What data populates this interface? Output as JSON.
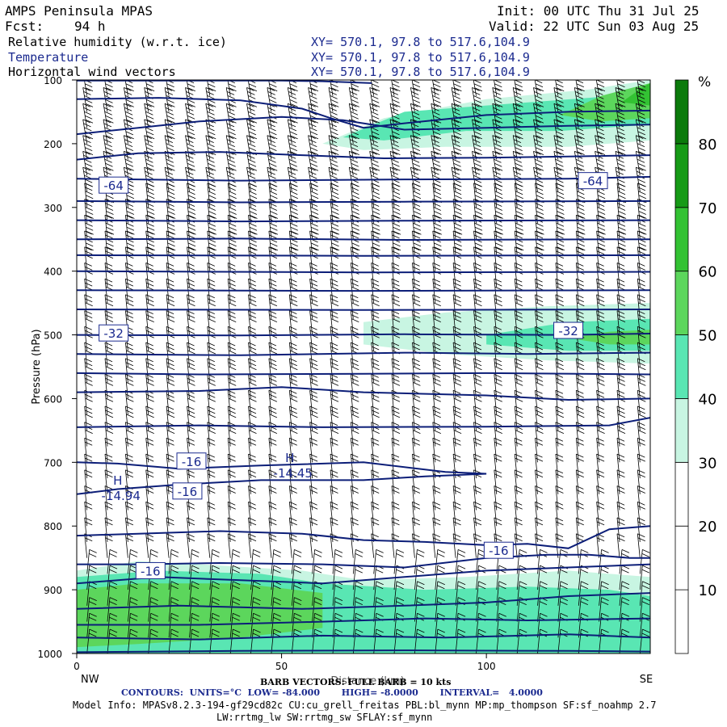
{
  "header": {
    "title": "AMPS Peninsula MPAS",
    "fcst_label": "Fcst:",
    "fcst_value": "94 h",
    "init": "Init: 00 UTC Thu 31 Jul 25",
    "valid": "Valid: 22 UTC Sun 03 Aug 25",
    "fields": [
      {
        "name": "Relative humidity (w.r.t. ice)",
        "xy": "XY= 570.1, 97.8 to 517.6,104.9"
      },
      {
        "name": "Temperature",
        "xy": "XY= 570.1, 97.8 to 517.6,104.9"
      },
      {
        "name": "Horizontal wind vectors",
        "xy": "XY= 570.1, 97.8 to 517.6,104.9"
      }
    ]
  },
  "chart_data": {
    "type": "heatmap",
    "ylabel": "Pressure (hPa)",
    "xlabel": "Distance (km)",
    "x_range": [
      0,
      140
    ],
    "x_ticks": [
      0,
      50,
      100
    ],
    "x_end_labels": {
      "left": "NW",
      "right": "SE"
    },
    "y_range": [
      1000,
      100
    ],
    "y_ticks": [
      100,
      200,
      300,
      400,
      500,
      600,
      700,
      800,
      900,
      1000
    ],
    "colorbar": {
      "unit": "%",
      "levels": [
        10,
        20,
        30,
        40,
        50,
        60,
        70,
        80
      ],
      "colors": [
        "#ffffff",
        "#ffffff",
        "#ffffff",
        "#c8f5e2",
        "#59e6b3",
        "#5cd65c",
        "#33c233",
        "#169a16",
        "#0b7a0b"
      ]
    },
    "rh_regions": [
      {
        "level": 30,
        "pts": [
          [
            0,
            1000
          ],
          [
            0,
            870
          ],
          [
            15,
            855
          ],
          [
            30,
            860
          ],
          [
            55,
            870
          ],
          [
            70,
            885
          ],
          [
            95,
            880
          ],
          [
            120,
            870
          ],
          [
            140,
            880
          ],
          [
            140,
            1000
          ]
        ]
      },
      {
        "level": 40,
        "pts": [
          [
            0,
            1000
          ],
          [
            0,
            880
          ],
          [
            20,
            870
          ],
          [
            45,
            875
          ],
          [
            60,
            890
          ],
          [
            85,
            900
          ],
          [
            110,
            895
          ],
          [
            130,
            900
          ],
          [
            140,
            910
          ],
          [
            140,
            1000
          ]
        ]
      },
      {
        "level": 50,
        "pts": [
          [
            0,
            990
          ],
          [
            0,
            900
          ],
          [
            15,
            890
          ],
          [
            40,
            890
          ],
          [
            60,
            905
          ],
          [
            60,
            960
          ],
          [
            40,
            975
          ],
          [
            15,
            985
          ]
        ]
      },
      {
        "level": 40,
        "pts": [
          [
            75,
            920
          ],
          [
            90,
            905
          ],
          [
            110,
            915
          ],
          [
            125,
            935
          ],
          [
            115,
            960
          ],
          [
            90,
            965
          ],
          [
            75,
            950
          ]
        ]
      },
      {
        "level": 30,
        "pts": [
          [
            60,
            200
          ],
          [
            75,
            160
          ],
          [
            100,
            130
          ],
          [
            125,
            115
          ],
          [
            140,
            100
          ],
          [
            140,
            195
          ],
          [
            120,
            205
          ],
          [
            90,
            205
          ],
          [
            70,
            210
          ]
        ]
      },
      {
        "level": 40,
        "pts": [
          [
            65,
            190
          ],
          [
            80,
            150
          ],
          [
            100,
            140
          ],
          [
            125,
            128
          ],
          [
            140,
            120
          ],
          [
            140,
            170
          ],
          [
            118,
            180
          ],
          [
            95,
            180
          ],
          [
            75,
            195
          ]
        ]
      },
      {
        "level": 50,
        "pts": [
          [
            118,
            155
          ],
          [
            128,
            125
          ],
          [
            140,
            105
          ],
          [
            140,
            160
          ],
          [
            128,
            165
          ]
        ]
      },
      {
        "level": 60,
        "pts": [
          [
            133,
            135
          ],
          [
            138,
            112
          ],
          [
            140,
            105
          ],
          [
            140,
            140
          ]
        ]
      },
      {
        "level": 30,
        "pts": [
          [
            70,
            480
          ],
          [
            90,
            465
          ],
          [
            115,
            455
          ],
          [
            140,
            450
          ],
          [
            140,
            545
          ],
          [
            115,
            540
          ],
          [
            90,
            530
          ],
          [
            70,
            515
          ]
        ]
      },
      {
        "level": 40,
        "pts": [
          [
            100,
            500
          ],
          [
            120,
            480
          ],
          [
            140,
            475
          ],
          [
            140,
            525
          ],
          [
            120,
            525
          ],
          [
            100,
            515
          ]
        ]
      },
      {
        "level": 50,
        "pts": [
          [
            120,
            505
          ],
          [
            130,
            495
          ],
          [
            140,
            492
          ],
          [
            140,
            515
          ],
          [
            130,
            515
          ]
        ]
      }
    ],
    "isotherms": [
      [
        [
          0,
          101
        ],
        [
          50,
          101
        ],
        [
          60,
          102
        ],
        [
          72,
          105
        ]
      ],
      [
        [
          0,
          130
        ],
        [
          20,
          128
        ],
        [
          40,
          132
        ],
        [
          55,
          145
        ],
        [
          62,
          160
        ],
        [
          70,
          175
        ],
        [
          80,
          168
        ],
        [
          100,
          155
        ],
        [
          120,
          150
        ],
        [
          140,
          148
        ]
      ],
      [
        [
          0,
          185
        ],
        [
          15,
          175
        ],
        [
          30,
          165
        ],
        [
          50,
          158
        ],
        [
          65,
          163
        ],
        [
          80,
          178
        ],
        [
          100,
          175
        ],
        [
          120,
          172
        ],
        [
          140,
          170
        ]
      ],
      [
        [
          0,
          225
        ],
        [
          15,
          215
        ],
        [
          35,
          213
        ],
        [
          55,
          218
        ],
        [
          75,
          223
        ],
        [
          100,
          222
        ],
        [
          120,
          220
        ],
        [
          140,
          218
        ]
      ],
      [
        [
          0,
          255
        ],
        [
          40,
          258
        ],
        [
          80,
          256
        ],
        [
          120,
          255
        ],
        [
          140,
          252
        ]
      ],
      [
        [
          0,
          290
        ],
        [
          40,
          292
        ],
        [
          80,
          291
        ],
        [
          140,
          290
        ]
      ],
      [
        [
          0,
          320
        ],
        [
          40,
          322
        ],
        [
          80,
          321
        ],
        [
          140,
          320
        ]
      ],
      [
        [
          0,
          350
        ],
        [
          40,
          349
        ],
        [
          80,
          351
        ],
        [
          140,
          350
        ]
      ],
      [
        [
          0,
          375
        ],
        [
          70,
          376
        ],
        [
          140,
          375
        ]
      ],
      [
        [
          0,
          400
        ],
        [
          70,
          402
        ],
        [
          140,
          401
        ]
      ],
      [
        [
          0,
          430
        ],
        [
          70,
          431
        ],
        [
          140,
          430
        ]
      ],
      [
        [
          0,
          460
        ],
        [
          70,
          461
        ],
        [
          140,
          460
        ]
      ],
      [
        [
          0,
          500
        ],
        [
          40,
          501
        ],
        [
          80,
          499
        ],
        [
          120,
          500
        ],
        [
          140,
          498
        ]
      ],
      [
        [
          0,
          530
        ],
        [
          40,
          532
        ],
        [
          80,
          528
        ],
        [
          110,
          530
        ],
        [
          140,
          528
        ]
      ],
      [
        [
          0,
          560
        ],
        [
          30,
          562
        ],
        [
          70,
          561
        ],
        [
          100,
          560
        ],
        [
          140,
          562
        ]
      ],
      [
        [
          0,
          590
        ],
        [
          30,
          588
        ],
        [
          50,
          582
        ],
        [
          70,
          590
        ],
        [
          100,
          595
        ],
        [
          120,
          602
        ],
        [
          140,
          600
        ]
      ],
      [
        [
          0,
          645
        ],
        [
          30,
          642
        ],
        [
          60,
          645
        ],
        [
          100,
          644
        ],
        [
          130,
          642
        ],
        [
          140,
          630
        ]
      ],
      [
        [
          0,
          700
        ],
        [
          10,
          702
        ],
        [
          25,
          710
        ],
        [
          45,
          705
        ],
        [
          70,
          700
        ],
        [
          90,
          715
        ],
        [
          100,
          718
        ],
        [
          85,
          722
        ],
        [
          70,
          728
        ],
        [
          45,
          728
        ],
        [
          25,
          735
        ],
        [
          10,
          742
        ],
        [
          0,
          750
        ]
      ],
      [
        [
          0,
          815
        ],
        [
          15,
          812
        ],
        [
          35,
          808
        ],
        [
          55,
          812
        ],
        [
          70,
          822
        ],
        [
          85,
          825
        ],
        [
          100,
          830
        ],
        [
          110,
          828
        ],
        [
          120,
          835
        ],
        [
          130,
          805
        ],
        [
          140,
          800
        ]
      ],
      [
        [
          0,
          860
        ],
        [
          15,
          860
        ],
        [
          35,
          858
        ],
        [
          60,
          860
        ],
        [
          80,
          865
        ],
        [
          100,
          850
        ],
        [
          115,
          845
        ],
        [
          125,
          845
        ],
        [
          135,
          850
        ],
        [
          140,
          850
        ]
      ],
      [
        [
          0,
          890
        ],
        [
          20,
          880
        ],
        [
          40,
          885
        ],
        [
          60,
          890
        ],
        [
          80,
          880
        ],
        [
          100,
          870
        ],
        [
          120,
          865
        ],
        [
          140,
          860
        ]
      ],
      [
        [
          0,
          930
        ],
        [
          25,
          925
        ],
        [
          55,
          930
        ],
        [
          80,
          925
        ],
        [
          100,
          920
        ],
        [
          120,
          910
        ],
        [
          140,
          905
        ]
      ],
      [
        [
          0,
          955
        ],
        [
          30,
          955
        ],
        [
          60,
          950
        ],
        [
          85,
          945
        ],
        [
          110,
          948
        ],
        [
          140,
          945
        ]
      ],
      [
        [
          0,
          975
        ],
        [
          30,
          978
        ],
        [
          60,
          972
        ],
        [
          90,
          975
        ],
        [
          120,
          970
        ],
        [
          140,
          975
        ]
      ],
      [
        [
          0,
          998
        ],
        [
          40,
          996
        ],
        [
          80,
          995
        ],
        [
          120,
          996
        ],
        [
          140,
          997
        ]
      ]
    ],
    "contour_labels": [
      {
        "text": "-64",
        "x": 9,
        "p": 265
      },
      {
        "text": "-64",
        "x": 126,
        "p": 258
      },
      {
        "text": "-32",
        "x": 9,
        "p": 497
      },
      {
        "text": "-32",
        "x": 120,
        "p": 493
      },
      {
        "text": "-16",
        "x": 28,
        "p": 698
      },
      {
        "text": "-16",
        "x": 27,
        "p": 745
      },
      {
        "text": "-16",
        "x": 103,
        "p": 838
      },
      {
        "text": "-16",
        "x": 18,
        "p": 870
      }
    ],
    "highs": [
      {
        "label": "H",
        "value": "-14.94",
        "x": 10,
        "p": 750
      },
      {
        "label": "H",
        "value": "-14.45",
        "x": 52,
        "p": 715
      }
    ],
    "barb_x_step_km": 5,
    "barb_p_step_hpa": 25
  },
  "footer": {
    "barb_note": "BARB VECTORS: FULL BARB = 10 kts",
    "contours": "CONTOURS:  UNITS=°C  LOW= -84.000       HIGH= -8.0000       INTERVAL=   4.0000",
    "model_info": "Model Info: MPASv8.2.3-194-gf29cd82c CU:cu_grell_freitas PBL:bl_mynn MP:mp_thompson SF:sf_noahmp 2.7",
    "model_info_2": "LW:rrtmg_lw SW:rrtmg_sw SFLAY:sf_mynn"
  }
}
